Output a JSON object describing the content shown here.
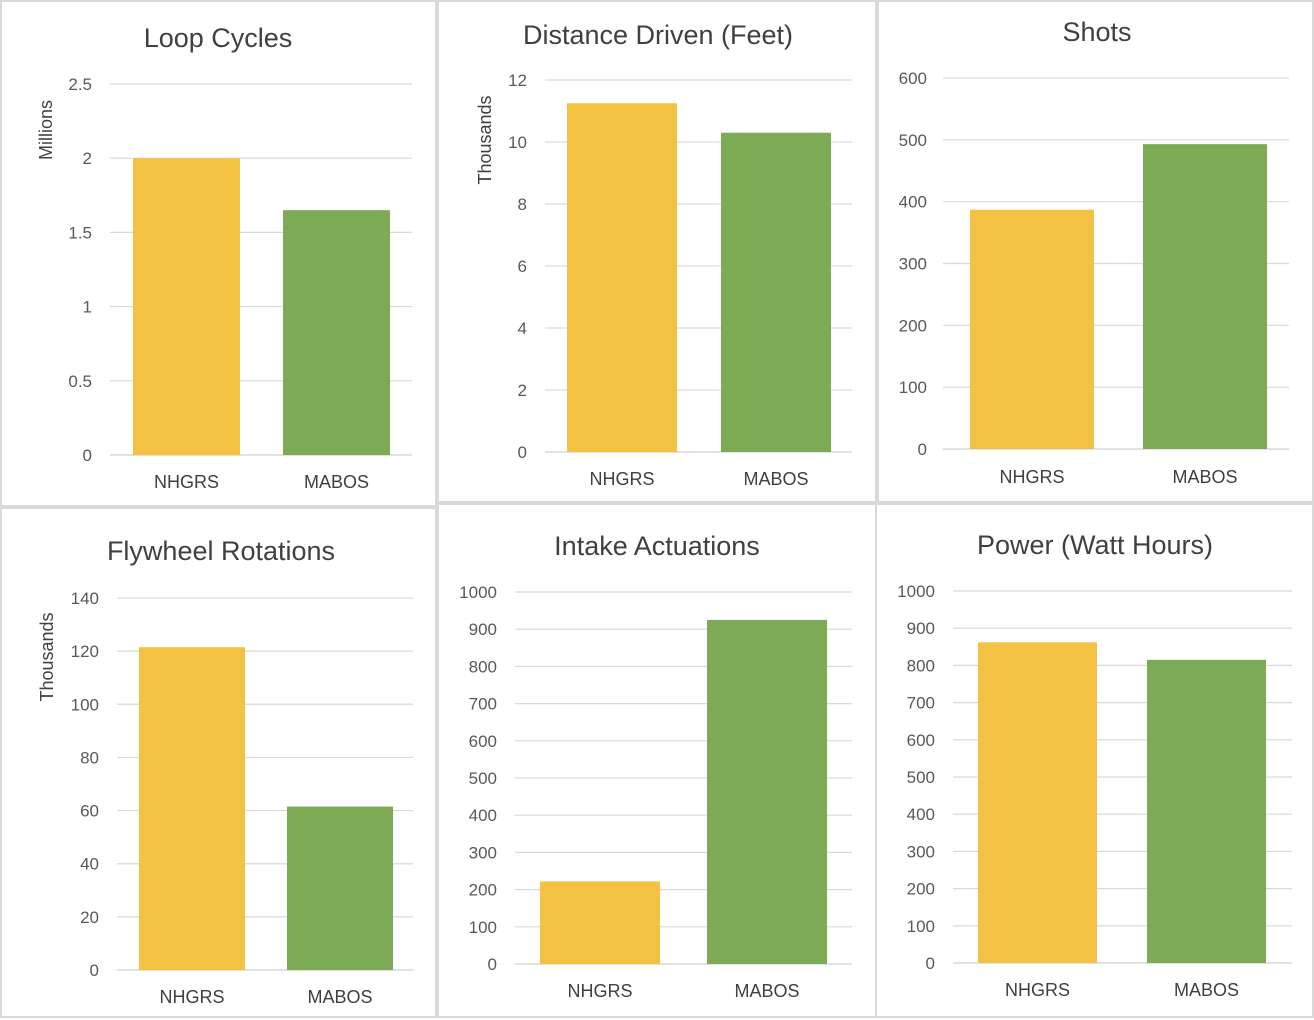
{
  "colors": {
    "NHGRS": "#F4C242",
    "MABOS": "#7DAB55"
  },
  "chart_data": [
    {
      "type": "bar",
      "title": "Loop Cycles",
      "xlabel": "",
      "ylabel": "Millions",
      "categories": [
        "NHGRS",
        "MABOS"
      ],
      "values": [
        2.0,
        1.65
      ],
      "ylim": [
        0,
        2.5
      ],
      "yticks": [
        "0",
        "0.5",
        "1",
        "1.5",
        "2",
        "2.5"
      ],
      "grid": true
    },
    {
      "type": "bar",
      "title": "Distance Driven (Feet)",
      "xlabel": "",
      "ylabel": "Thousands",
      "categories": [
        "NHGRS",
        "MABOS"
      ],
      "values": [
        11.25,
        10.3
      ],
      "ylim": [
        0,
        12
      ],
      "yticks": [
        "0",
        "2",
        "4",
        "6",
        "8",
        "10",
        "12"
      ],
      "grid": true
    },
    {
      "type": "bar",
      "title": "Shots",
      "xlabel": "",
      "ylabel": "",
      "categories": [
        "NHGRS",
        "MABOS"
      ],
      "values": [
        387,
        493
      ],
      "ylim": [
        0,
        600
      ],
      "yticks": [
        "0",
        "100",
        "200",
        "300",
        "400",
        "500",
        "600"
      ],
      "grid": true
    },
    {
      "type": "bar",
      "title": "Flywheel Rotations",
      "xlabel": "",
      "ylabel": "Thousands",
      "categories": [
        "NHGRS",
        "MABOS"
      ],
      "values": [
        121.5,
        61.5
      ],
      "ylim": [
        0,
        140
      ],
      "yticks": [
        "0",
        "20",
        "40",
        "60",
        "80",
        "100",
        "120",
        "140"
      ],
      "grid": true
    },
    {
      "type": "bar",
      "title": "Intake Actuations",
      "xlabel": "",
      "ylabel": "",
      "categories": [
        "NHGRS",
        "MABOS"
      ],
      "values": [
        222,
        925
      ],
      "ylim": [
        0,
        1000
      ],
      "yticks": [
        "0",
        "100",
        "200",
        "300",
        "400",
        "500",
        "600",
        "700",
        "800",
        "900",
        "1000"
      ],
      "grid": true
    },
    {
      "type": "bar",
      "title": "Power (Watt Hours)",
      "xlabel": "",
      "ylabel": "",
      "categories": [
        "NHGRS",
        "MABOS"
      ],
      "values": [
        862,
        815
      ],
      "ylim": [
        0,
        1000
      ],
      "yticks": [
        "0",
        "100",
        "200",
        "300",
        "400",
        "500",
        "600",
        "700",
        "800",
        "900",
        "1000"
      ],
      "grid": true
    }
  ]
}
